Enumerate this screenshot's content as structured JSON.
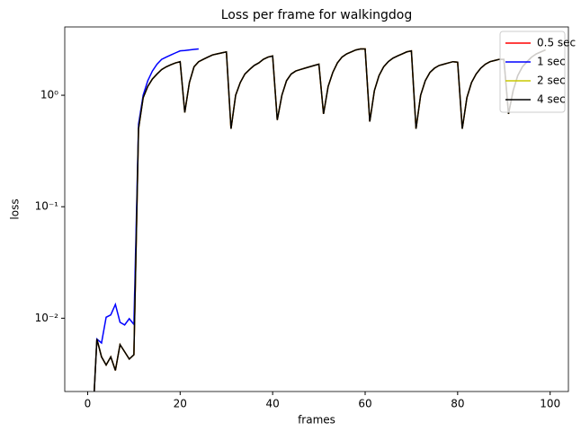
{
  "chart_data": {
    "type": "line",
    "title": "Loss per frame for walkingdog",
    "x_label": "frames",
    "y_label": "loss",
    "x": [
      1,
      2,
      3,
      4,
      5,
      6,
      7,
      8,
      9,
      10,
      11,
      12,
      13,
      14,
      15,
      16,
      17,
      18,
      19,
      20,
      21,
      22,
      23,
      24,
      25,
      26,
      27,
      28,
      29,
      30,
      31,
      32,
      33,
      34,
      35,
      36,
      37,
      38,
      39,
      40,
      41,
      42,
      43,
      44,
      45,
      46,
      47,
      48,
      49,
      50,
      51,
      52,
      53,
      54,
      55,
      56,
      57,
      58,
      59,
      60,
      61,
      62,
      63,
      64,
      65,
      66,
      67,
      68,
      69,
      70,
      71,
      72,
      73,
      74,
      75,
      76,
      77,
      78,
      79,
      80,
      81,
      82,
      83,
      84,
      85,
      86,
      87,
      88,
      89,
      90,
      91,
      92,
      93,
      94,
      95,
      96,
      97,
      98,
      99
    ],
    "series": [
      {
        "name": "0.5 sec",
        "color": "#ff0000",
        "values": [
          0.001,
          0.0065,
          0.0045,
          0.0038,
          0.0045,
          0.0034,
          0.0058,
          0.005,
          0.0043,
          0.0047,
          0.5,
          0.95,
          1.2,
          1.4,
          1.55,
          1.7,
          1.8,
          1.88,
          1.95,
          2.0,
          0.7,
          1.3,
          1.8,
          2.0,
          2.1,
          2.2,
          2.3,
          2.35,
          2.4,
          2.45,
          0.5,
          1.0,
          1.3,
          1.55,
          1.7,
          1.85,
          1.95,
          2.1,
          2.2,
          2.25,
          0.6,
          1.0,
          1.35,
          1.55,
          1.65,
          1.7,
          1.75,
          1.8,
          1.85,
          1.9,
          0.68,
          1.2,
          1.6,
          1.95,
          2.2,
          2.35,
          2.45,
          2.55,
          2.6,
          2.6,
          0.58,
          1.1,
          1.5,
          1.8,
          2.0,
          2.15,
          2.25,
          2.35,
          2.45,
          2.5,
          0.5,
          1.0,
          1.35,
          1.6,
          1.75,
          1.85,
          1.9,
          1.95,
          2.0,
          1.98,
          0.5,
          0.95,
          1.3,
          1.55,
          1.75,
          1.9,
          2.0,
          2.05,
          2.1,
          2.1,
          0.68,
          1.1,
          1.5,
          1.8,
          2.0,
          2.2,
          2.35,
          2.45,
          2.55
        ]
      },
      {
        "name": "1 sec",
        "color": "#0000ff",
        "values": [
          0.001,
          0.0065,
          0.006,
          0.0102,
          0.0107,
          0.0133,
          0.0092,
          0.0087,
          0.0099,
          0.0088,
          0.55,
          1.0,
          1.35,
          1.65,
          1.9,
          2.1,
          2.2,
          2.3,
          2.4,
          2.5,
          2.52,
          2.55,
          2.58,
          2.6,
          null,
          null,
          null,
          null,
          null,
          null,
          null,
          null,
          null,
          null,
          null,
          null,
          null,
          null,
          null,
          null,
          null,
          null,
          null,
          null,
          null,
          null,
          null,
          null,
          null,
          null,
          null,
          null,
          null,
          null,
          null,
          null,
          null,
          null,
          null,
          null,
          null,
          null,
          null,
          null,
          null,
          null,
          null,
          null,
          null,
          null,
          null,
          null,
          null,
          null,
          null,
          null,
          null,
          null,
          null,
          null,
          null,
          null,
          null,
          null,
          null,
          null,
          null,
          null,
          null,
          null,
          null,
          null,
          null,
          null,
          null,
          null,
          null,
          null,
          null
        ]
      },
      {
        "name": "2 sec",
        "color": "#c8c800",
        "values": [
          0.001,
          0.0065,
          0.0045,
          0.0038,
          0.0045,
          0.0034,
          0.0058,
          0.005,
          0.0043,
          0.0047,
          0.5,
          0.95,
          1.2,
          1.4,
          1.55,
          1.7,
          1.8,
          1.88,
          1.95,
          2.0,
          0.7,
          1.3,
          1.8,
          2.0,
          2.1,
          2.2,
          2.3,
          2.35,
          2.4,
          2.45,
          0.5,
          1.0,
          1.3,
          1.55,
          1.7,
          1.85,
          1.95,
          2.1,
          2.2,
          2.25,
          0.6,
          1.0,
          1.35,
          1.55,
          1.65,
          1.7,
          1.75,
          1.8,
          1.85,
          1.9,
          0.68,
          1.2,
          1.6,
          1.95,
          2.2,
          2.35,
          2.45,
          2.55,
          2.6,
          2.6,
          0.58,
          1.1,
          1.5,
          1.8,
          2.0,
          2.15,
          2.25,
          2.35,
          2.45,
          2.5,
          0.5,
          1.0,
          1.35,
          1.6,
          1.75,
          1.85,
          1.9,
          1.95,
          2.0,
          1.98,
          0.5,
          0.95,
          1.3,
          1.55,
          1.75,
          1.9,
          2.0,
          2.05,
          2.1,
          2.1,
          0.68,
          1.1,
          1.5,
          1.8,
          2.0,
          2.2,
          2.35,
          2.45,
          2.55
        ]
      },
      {
        "name": "4 sec",
        "color": "#000000",
        "values": [
          0.001,
          0.0065,
          0.0045,
          0.0038,
          0.0045,
          0.0034,
          0.0058,
          0.005,
          0.0043,
          0.0047,
          0.5,
          0.95,
          1.2,
          1.4,
          1.55,
          1.7,
          1.8,
          1.88,
          1.95,
          2.0,
          0.7,
          1.3,
          1.8,
          2.0,
          2.1,
          2.2,
          2.3,
          2.35,
          2.4,
          2.45,
          0.5,
          1.0,
          1.3,
          1.55,
          1.7,
          1.85,
          1.95,
          2.1,
          2.2,
          2.25,
          0.6,
          1.0,
          1.35,
          1.55,
          1.65,
          1.7,
          1.75,
          1.8,
          1.85,
          1.9,
          0.68,
          1.2,
          1.6,
          1.95,
          2.2,
          2.35,
          2.45,
          2.55,
          2.6,
          2.6,
          0.58,
          1.1,
          1.5,
          1.8,
          2.0,
          2.15,
          2.25,
          2.35,
          2.45,
          2.5,
          0.5,
          1.0,
          1.35,
          1.6,
          1.75,
          1.85,
          1.9,
          1.95,
          2.0,
          1.98,
          0.5,
          0.95,
          1.3,
          1.55,
          1.75,
          1.9,
          2.0,
          2.05,
          2.1,
          2.1,
          0.68,
          1.1,
          1.5,
          1.8,
          2.0,
          2.2,
          2.35,
          2.45,
          2.55
        ]
      }
    ],
    "xlim": [
      -4.95,
      103.95
    ],
    "xticks": [
      0,
      20,
      40,
      60,
      80,
      100
    ],
    "ylim": [
      0.0022,
      4.1
    ],
    "y_scale": "log",
    "yticks": [
      {
        "value": 0.01,
        "label": "10⁻²"
      },
      {
        "value": 0.1,
        "label": "10⁻¹"
      },
      {
        "value": 1,
        "label": "10⁰"
      }
    ],
    "legend": "upper right"
  }
}
